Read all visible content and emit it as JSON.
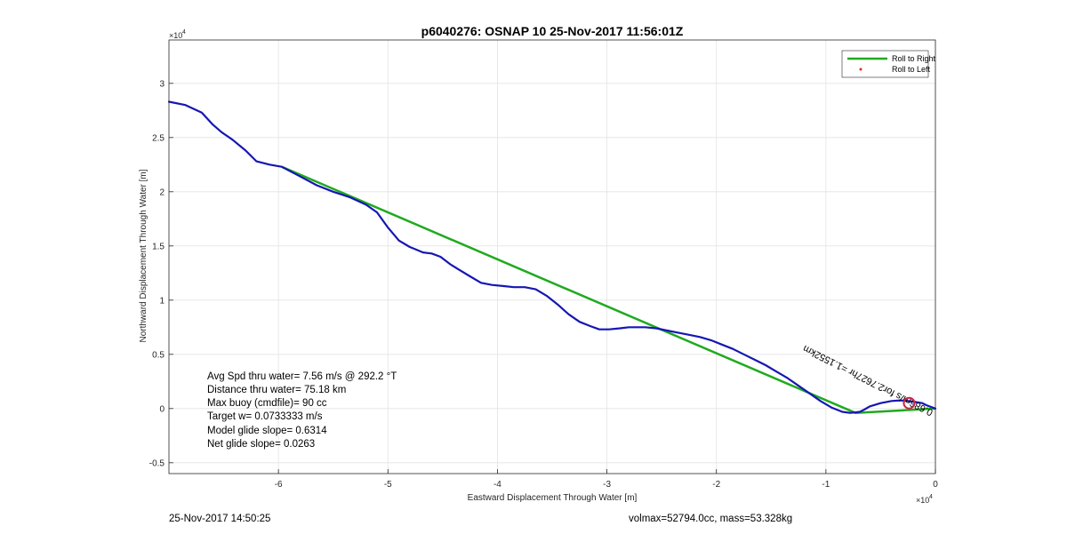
{
  "footer": {
    "timestamp": "25-Nov-2017 14:50:25",
    "vol_mass": "volmax=52794.0cc, mass=53.328kg"
  },
  "chart_data": {
    "type": "line",
    "title": "p6040276: OSNAP 10 25-Nov-2017 11:56:01Z",
    "xlabel": "Eastward Displacement Through Water [m]",
    "ylabel": "Northward Displacement Through Water [m]",
    "x_exponent": "10",
    "x_exponent_power": "4",
    "y_exponent": "10",
    "y_exponent_power": "4",
    "xlim": [
      -70000,
      0
    ],
    "ylim": [
      -6000,
      34000
    ],
    "xticks": [
      -60000,
      -50000,
      -40000,
      -30000,
      -20000,
      -10000,
      0
    ],
    "xtick_labels": [
      "-6",
      "-5",
      "-4",
      "-3",
      "-2",
      "-1",
      "0"
    ],
    "yticks": [
      -5000,
      0,
      5000,
      10000,
      15000,
      20000,
      25000,
      30000
    ],
    "ytick_labels": [
      "-0.5",
      "0",
      "0.5",
      "1",
      "1.5",
      "2",
      "2.5",
      "3"
    ],
    "grid": true,
    "legend_position": "top-right",
    "series": [
      {
        "name": "Roll to Right",
        "color": "#1faa1f",
        "x": [
          0,
          -7300,
          -59700
        ],
        "y": [
          0,
          -400,
          22300
        ]
      },
      {
        "name": "Roll to Left",
        "color": "#ee2222",
        "marker": "dot",
        "x": [],
        "y": []
      },
      {
        "color": "#1616b4",
        "x": [
          -70000,
          -68500,
          -67000,
          -66000,
          -65200,
          -64200,
          -63000,
          -62000,
          -60800,
          -59700,
          -58000,
          -56500,
          -55000,
          -53500,
          -52000,
          -51000,
          -50000,
          -49000,
          -48000,
          -47500,
          -46800,
          -46000,
          -45200,
          -44300,
          -43500,
          -42500,
          -41500,
          -40500,
          -39500,
          -38500,
          -37500,
          -36500,
          -35500,
          -34500,
          -33500,
          -32500,
          -31500,
          -30700,
          -29800,
          -28800,
          -28000,
          -27200,
          -26500,
          -25500,
          -24500,
          -23500,
          -22500,
          -21500,
          -20500,
          -19500,
          -18500,
          -17500,
          -16500,
          -15500,
          -14500,
          -13500,
          -12500,
          -11500,
          -10500,
          -9500,
          -8500,
          -7800,
          -7300,
          -6900,
          -6500,
          -6000,
          -5000,
          -4000,
          -3200,
          -2500,
          -1800,
          -1200,
          -800,
          -400,
          0
        ],
        "y": [
          28300,
          28000,
          27300,
          26200,
          25500,
          24800,
          23800,
          22800,
          22500,
          22300,
          21400,
          20600,
          20000,
          19500,
          18800,
          18100,
          16700,
          15500,
          14900,
          14700,
          14400,
          14300,
          14000,
          13300,
          12800,
          12200,
          11600,
          11400,
          11300,
          11200,
          11200,
          11000,
          10400,
          9600,
          8700,
          8000,
          7600,
          7300,
          7300,
          7400,
          7500,
          7500,
          7500,
          7400,
          7200,
          7000,
          6800,
          6600,
          6300,
          5900,
          5500,
          5000,
          4500,
          4000,
          3400,
          2800,
          2100,
          1400,
          700,
          100,
          -300,
          -400,
          -350,
          -300,
          -100,
          200,
          500,
          700,
          750,
          700,
          600,
          500,
          300,
          150,
          0
        ]
      }
    ],
    "annotations": {
      "stats": [
        "Avg Spd thru water=  7.56 m/s @ 292.2 °T",
        "Distance thru water= 75.18 km",
        "Max buoy (cmdfile)= 90 cc",
        "Target w= 0.0733333 m/s",
        "Model glide slope= 0.6314",
        "Net glide slope= 0.0263"
      ],
      "rotated_label": "0.686m/s for2.7627hr =1.1552km",
      "current_marker": {
        "x": -2400,
        "y": 500,
        "color": "#cc2244"
      }
    }
  }
}
